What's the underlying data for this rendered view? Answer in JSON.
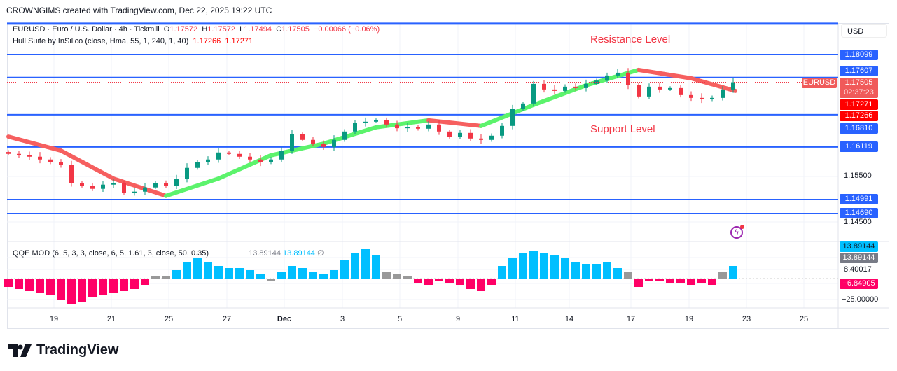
{
  "header": {
    "credit": "CROWNGIMS created with TradingView.com, Dec 22, 2025 19:22 UTC"
  },
  "legend": {
    "symbol": "EURUSD · Euro / U.S. Dollar · 4h · Tickmill",
    "o_label": "O",
    "o": "1.17572",
    "h_label": "H",
    "h": "1.17572",
    "l_label": "L",
    "l": "1.17494",
    "c_label": "C",
    "c": "1.17505",
    "change": "−0.00066 (−0.06%)",
    "hull": "Hull Suite by InSilico (close, Hma, 55, 1, 240, 1, 40)",
    "hull_v1": "1.17266",
    "hull_v2": "1.17271",
    "qqe": "QQE MOD (6, 5, 3, 3, close, 6, 5, 1.61, 3, close, 50, 0.35)",
    "qqe_v1": "13.89144",
    "qqe_v2": "13.89144",
    "qqe_v3": "∅"
  },
  "annotations": {
    "resistance": "Resistance Level",
    "support": "Support Level"
  },
  "price_axis": {
    "currency": "USD",
    "ticks": [
      "1.15500",
      "1.14500"
    ],
    "badges": {
      "r1": "1.18099",
      "r2": "1.17607",
      "last": "1.17505",
      "timer": "02:37:23",
      "hull_a": "1.17271",
      "hull_b": "1.17266",
      "s1": "1.16810",
      "s2": "1.16119",
      "s3": "1.14991",
      "s4": "1.14690"
    },
    "symbol_tag": "EURUSD"
  },
  "qqe_axis": {
    "b1": "13.89144",
    "b2": "13.89144",
    "t1": "8.40017",
    "b3": "−6.84905",
    "t2": "−25.00000"
  },
  "time_axis": [
    "19",
    "21",
    "25",
    "27",
    "Dec",
    "3",
    "5",
    "9",
    "11",
    "14",
    "17",
    "19",
    "23",
    "25"
  ],
  "logo": "TradingView",
  "colors": {
    "up": "#089981",
    "down": "#f23645",
    "level": "#2962ff",
    "hull_up": "#5cf36c",
    "hull_down": "#f65f5f",
    "qqe_pos": "#00bfff",
    "qqe_neg": "#ff0066",
    "qqe_neutral": "#999999"
  },
  "chart_data": {
    "type": "candlestick",
    "symbol": "EURUSD",
    "interval": "4h",
    "levels": [
      1.1877,
      1.18099,
      1.17607,
      1.1681,
      1.16119,
      1.14991,
      1.1469
    ],
    "closes": [
      1.1597,
      1.1594,
      1.1591,
      1.1585,
      1.1579,
      1.1573,
      1.1534,
      1.1528,
      1.1522,
      1.1531,
      1.1534,
      1.1513,
      1.1516,
      1.1525,
      1.1534,
      1.1528,
      1.1544,
      1.1567,
      1.1579,
      1.1585,
      1.16,
      1.1597,
      1.1591,
      1.1585,
      1.1579,
      1.1585,
      1.1604,
      1.1639,
      1.1627,
      1.1618,
      1.1612,
      1.1627,
      1.1645,
      1.1663,
      1.1666,
      1.1669,
      1.166,
      1.1652,
      1.1654,
      1.1651,
      1.166,
      1.1645,
      1.1633,
      1.1642,
      1.163,
      1.1627,
      1.1636,
      1.1657,
      1.1693,
      1.1705,
      1.1747,
      1.1735,
      1.1732,
      1.1741,
      1.1738,
      1.1747,
      1.1754,
      1.1765,
      1.1771,
      1.1744,
      1.172,
      1.1741,
      1.1735,
      1.1738,
      1.1723,
      1.1717,
      1.1714,
      1.1717,
      1.1735,
      1.17505
    ],
    "hull": [
      1.1634,
      1.1604,
      1.1544,
      1.1507,
      1.1544,
      1.1594,
      1.1619,
      1.1654,
      1.1669,
      1.1657,
      1.1702,
      1.1744,
      1.1777,
      1.1759,
      1.1732
    ],
    "qqe": [
      -4,
      -5,
      -6,
      -7,
      -8,
      -10,
      -12,
      -11,
      -9,
      -8,
      -7,
      -6,
      -5,
      -3,
      1,
      1,
      4,
      8,
      10,
      8,
      6,
      5,
      5,
      4,
      2,
      -1,
      3,
      6,
      5,
      3,
      2,
      4,
      9,
      12,
      14,
      11,
      3,
      2,
      0.5,
      -2,
      -3,
      -1,
      -2,
      -3,
      -5,
      -6,
      -3,
      6,
      10,
      12,
      13,
      12,
      11,
      10,
      8,
      7,
      7,
      8,
      5,
      3,
      -4,
      -1,
      -1,
      -2,
      -2,
      -3,
      -2,
      -3,
      3,
      6
    ],
    "qqe_state": "nnnnnnnnnnnnnnggpppppppppgppppppppppgggnnnnnnnnppppppppppppgnnnnnnnngp",
    "price_range": [
      1.1425,
      1.188
    ]
  }
}
